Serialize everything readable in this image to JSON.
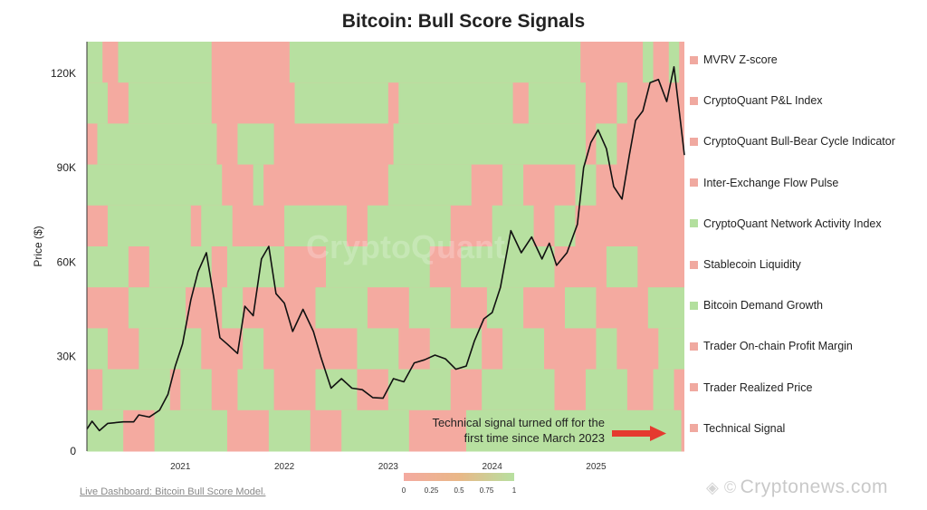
{
  "chart_data": {
    "type": "line",
    "title": "Bitcoin: Bull Score Signals",
    "ylabel": "Price ($)",
    "xlabel": "",
    "ylim": [
      0,
      130000
    ],
    "xlim": [
      2020.1,
      2025.85
    ],
    "yticks": [
      {
        "value": 0,
        "label": "0"
      },
      {
        "value": 30000,
        "label": "30K"
      },
      {
        "value": 60000,
        "label": "60K"
      },
      {
        "value": 90000,
        "label": "90K"
      },
      {
        "value": 120000,
        "label": "120K"
      }
    ],
    "xticks": [
      {
        "value": 2021,
        "label": "2021"
      },
      {
        "value": 2022,
        "label": "2022"
      },
      {
        "value": 2023,
        "label": "2023"
      },
      {
        "value": 2024,
        "label": "2024"
      },
      {
        "value": 2025,
        "label": "2025"
      }
    ],
    "series": [
      {
        "name": "BTC Price",
        "color": "#111111",
        "points": [
          [
            2020.1,
            7000
          ],
          [
            2020.15,
            9500
          ],
          [
            2020.22,
            6500
          ],
          [
            2020.3,
            8800
          ],
          [
            2020.45,
            9300
          ],
          [
            2020.55,
            9300
          ],
          [
            2020.6,
            11500
          ],
          [
            2020.7,
            10800
          ],
          [
            2020.8,
            13000
          ],
          [
            2020.88,
            18000
          ],
          [
            2020.95,
            27000
          ],
          [
            2021.02,
            34000
          ],
          [
            2021.1,
            48000
          ],
          [
            2021.17,
            57000
          ],
          [
            2021.25,
            63000
          ],
          [
            2021.32,
            49000
          ],
          [
            2021.38,
            36000
          ],
          [
            2021.45,
            34000
          ],
          [
            2021.55,
            31000
          ],
          [
            2021.62,
            46000
          ],
          [
            2021.7,
            43000
          ],
          [
            2021.78,
            61000
          ],
          [
            2021.85,
            65000
          ],
          [
            2021.92,
            50000
          ],
          [
            2022.0,
            47000
          ],
          [
            2022.08,
            38000
          ],
          [
            2022.18,
            45000
          ],
          [
            2022.28,
            38000
          ],
          [
            2022.35,
            30000
          ],
          [
            2022.45,
            20000
          ],
          [
            2022.55,
            23000
          ],
          [
            2022.65,
            20000
          ],
          [
            2022.75,
            19500
          ],
          [
            2022.85,
            17000
          ],
          [
            2022.95,
            16800
          ],
          [
            2023.05,
            23000
          ],
          [
            2023.15,
            22000
          ],
          [
            2023.25,
            28000
          ],
          [
            2023.35,
            29000
          ],
          [
            2023.45,
            30500
          ],
          [
            2023.55,
            29300
          ],
          [
            2023.65,
            26000
          ],
          [
            2023.75,
            27000
          ],
          [
            2023.83,
            35000
          ],
          [
            2023.92,
            42000
          ],
          [
            2024.0,
            44000
          ],
          [
            2024.08,
            52000
          ],
          [
            2024.18,
            70000
          ],
          [
            2024.28,
            63000
          ],
          [
            2024.38,
            68000
          ],
          [
            2024.48,
            61000
          ],
          [
            2024.55,
            66000
          ],
          [
            2024.62,
            59000
          ],
          [
            2024.72,
            63000
          ],
          [
            2024.82,
            72000
          ],
          [
            2024.88,
            90000
          ],
          [
            2024.95,
            98000
          ],
          [
            2025.02,
            102000
          ],
          [
            2025.1,
            96000
          ],
          [
            2025.17,
            84000
          ],
          [
            2025.25,
            80000
          ],
          [
            2025.32,
            94000
          ],
          [
            2025.38,
            105000
          ],
          [
            2025.45,
            108000
          ],
          [
            2025.52,
            117000
          ],
          [
            2025.6,
            118000
          ],
          [
            2025.68,
            111000
          ],
          [
            2025.75,
            122000
          ],
          [
            2025.8,
            108000
          ],
          [
            2025.85,
            94000
          ]
        ]
      }
    ],
    "heatmap": {
      "colorscale": {
        "min_color": "#f4aaa0",
        "mid_color": "#e9b787",
        "max_color": "#b7e0a0",
        "range": [
          0,
          1
        ]
      },
      "colorbar_ticks": [
        "0",
        "0.25",
        "0.5",
        "0.75",
        "1"
      ],
      "rows": [
        {
          "name": "MVRV Z-score",
          "on_intervals": [
            [
              2020.1,
              2020.25
            ],
            [
              2020.4,
              2021.3
            ],
            [
              2022.05,
              2024.85
            ],
            [
              2025.45,
              2025.55
            ],
            [
              2025.7,
              2025.8
            ]
          ]
        },
        {
          "name": "CryptoQuant P&L Index",
          "on_intervals": [
            [
              2020.1,
              2020.3
            ],
            [
              2020.5,
              2021.3
            ],
            [
              2022.1,
              2023.0
            ],
            [
              2023.1,
              2024.2
            ],
            [
              2024.35,
              2024.9
            ],
            [
              2025.2,
              2025.3
            ]
          ]
        },
        {
          "name": "CryptoQuant Bull-Bear Cycle Indicator",
          "on_intervals": [
            [
              2020.2,
              2021.35
            ],
            [
              2021.55,
              2021.9
            ],
            [
              2023.05,
              2024.9
            ],
            [
              2025.0,
              2025.2
            ]
          ]
        },
        {
          "name": "Inter-Exchange Flow Pulse",
          "on_intervals": [
            [
              2020.1,
              2021.4
            ],
            [
              2021.7,
              2021.8
            ],
            [
              2023.0,
              2023.8
            ],
            [
              2024.1,
              2024.3
            ],
            [
              2024.8,
              2025.0
            ]
          ]
        },
        {
          "name": "CryptoQuant Network Activity Index",
          "on_intervals": [
            [
              2020.3,
              2021.1
            ],
            [
              2021.2,
              2021.5
            ],
            [
              2022.0,
              2022.6
            ],
            [
              2022.8,
              2023.6
            ],
            [
              2024.0,
              2024.4
            ],
            [
              2024.6,
              2024.8
            ]
          ]
        },
        {
          "name": "Stablecoin Liquidity",
          "on_intervals": [
            [
              2020.1,
              2020.5
            ],
            [
              2020.7,
              2021.3
            ],
            [
              2021.45,
              2022.0
            ],
            [
              2022.4,
              2023.4
            ],
            [
              2023.7,
              2024.6
            ],
            [
              2025.1,
              2025.4
            ]
          ]
        },
        {
          "name": "Bitcoin Demand Growth",
          "on_intervals": [
            [
              2020.5,
              2021.05
            ],
            [
              2021.4,
              2021.6
            ],
            [
              2022.3,
              2022.8
            ],
            [
              2023.2,
              2023.6
            ],
            [
              2023.95,
              2024.3
            ],
            [
              2024.7,
              2025.0
            ],
            [
              2025.5,
              2025.85
            ]
          ]
        },
        {
          "name": "Trader On-chain Profit Margin",
          "on_intervals": [
            [
              2020.1,
              2020.3
            ],
            [
              2020.6,
              2021.2
            ],
            [
              2021.6,
              2021.8
            ],
            [
              2022.7,
              2023.1
            ],
            [
              2023.4,
              2023.9
            ],
            [
              2024.1,
              2024.5
            ],
            [
              2025.0,
              2025.2
            ],
            [
              2025.6,
              2025.85
            ]
          ]
        },
        {
          "name": "Trader Realized Price",
          "on_intervals": [
            [
              2020.25,
              2020.9
            ],
            [
              2021.0,
              2021.3
            ],
            [
              2021.55,
              2021.9
            ],
            [
              2022.3,
              2022.7
            ],
            [
              2023.0,
              2023.6
            ],
            [
              2023.9,
              2024.6
            ],
            [
              2024.9,
              2025.3
            ],
            [
              2025.55,
              2025.75
            ]
          ]
        },
        {
          "name": "Technical Signal",
          "on_intervals": [
            [
              2020.1,
              2020.45
            ],
            [
              2020.75,
              2021.45
            ],
            [
              2021.85,
              2022.25
            ],
            [
              2022.55,
              2023.2
            ],
            [
              2023.75,
              2025.82
            ]
          ]
        }
      ]
    },
    "annotation": {
      "text_line1": "Technical signal turned off for the",
      "text_line2": "first time since March 2023",
      "arrow_color": "#e53a2f"
    }
  },
  "legend_items": [
    {
      "label": "MVRV Z-score",
      "color": "#f0a9a0"
    },
    {
      "label": "CryptoQuant P&L Index",
      "color": "#f0a9a0"
    },
    {
      "label": "CryptoQuant Bull-Bear Cycle Indicator",
      "color": "#f0a9a0"
    },
    {
      "label": "Inter-Exchange Flow Pulse",
      "color": "#f0a9a0"
    },
    {
      "label": "CryptoQuant Network Activity Index",
      "color": "#b3df9e"
    },
    {
      "label": "Stablecoin Liquidity",
      "color": "#f0a9a0"
    },
    {
      "label": "Bitcoin Demand Growth",
      "color": "#b3df9e"
    },
    {
      "label": "Trader On-chain Profit Margin",
      "color": "#f0a9a0"
    },
    {
      "label": "Trader Realized Price",
      "color": "#f0a9a0"
    },
    {
      "label": "Technical Signal",
      "color": "#f0a9a0"
    }
  ],
  "footer": {
    "link_text": "Live Dashboard: Bitcoin Bull Score Model."
  },
  "watermarks": {
    "brand": "Cryptonews.com",
    "background": "CryptoQuant"
  }
}
